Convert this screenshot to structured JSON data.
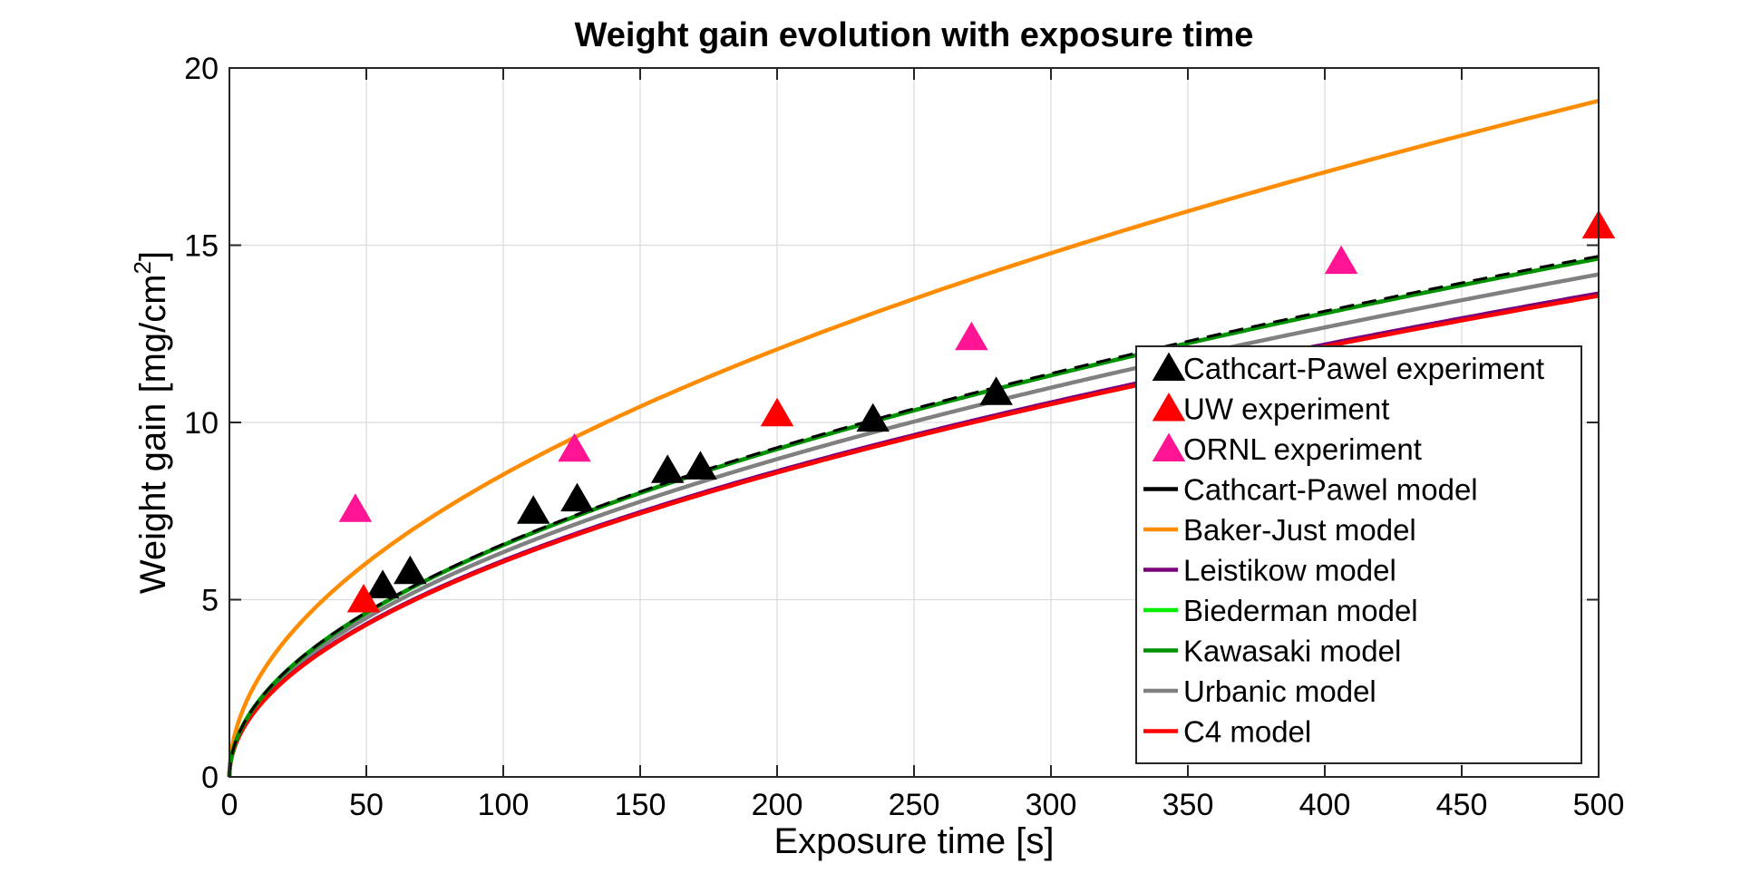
{
  "chart_data": {
    "type": "line",
    "title": "Weight gain evolution with exposure time",
    "xlabel": "Exposure time [s]",
    "ylabel_main": "Weight gain [mg/cm",
    "ylabel_sup": "2",
    "ylabel_close": "]",
    "xlim": [
      0,
      500
    ],
    "ylim": [
      0,
      20
    ],
    "xticks": [
      "0",
      "50",
      "100",
      "150",
      "200",
      "250",
      "300",
      "350",
      "400",
      "450",
      "500"
    ],
    "yticks": [
      "0",
      "5",
      "10",
      "15",
      "20"
    ],
    "grid": true,
    "legend_position": "bottom-right",
    "scatter_series": [
      {
        "name": "Cathcart-Pawel experiment",
        "color": "#000000",
        "x": [
          56,
          66,
          111,
          127,
          160,
          172,
          235,
          280
        ],
        "y": [
          5.4,
          5.8,
          7.5,
          7.85,
          8.65,
          8.75,
          10.1,
          10.85
        ]
      },
      {
        "name": "UW experiment",
        "color": "#ff0000",
        "x": [
          49,
          200,
          500
        ],
        "y": [
          5.0,
          10.25,
          15.55
        ]
      },
      {
        "name": "ORNL experiment",
        "color": "#ff1493",
        "x": [
          46,
          126,
          271,
          406
        ],
        "y": [
          7.55,
          9.25,
          12.4,
          14.55
        ]
      }
    ],
    "model_series": [
      {
        "name": "Cathcart-Pawel model",
        "color": "#000000",
        "coef": 0.657,
        "dashed": true
      },
      {
        "name": "Baker-Just model",
        "color": "#ff8c00",
        "coef": 0.853
      },
      {
        "name": "Leistikow model",
        "color": "#7a007a",
        "coef": 0.61
      },
      {
        "name": "Biederman model",
        "color": "#00ee00",
        "coef": 0.654
      },
      {
        "name": "Kawasaki model",
        "color": "#009000",
        "coef": 0.654
      },
      {
        "name": "Urbanic model",
        "color": "#808080",
        "coef": 0.634
      },
      {
        "name": "C4 model",
        "color": "#ff0000",
        "coef": 0.607
      }
    ]
  }
}
